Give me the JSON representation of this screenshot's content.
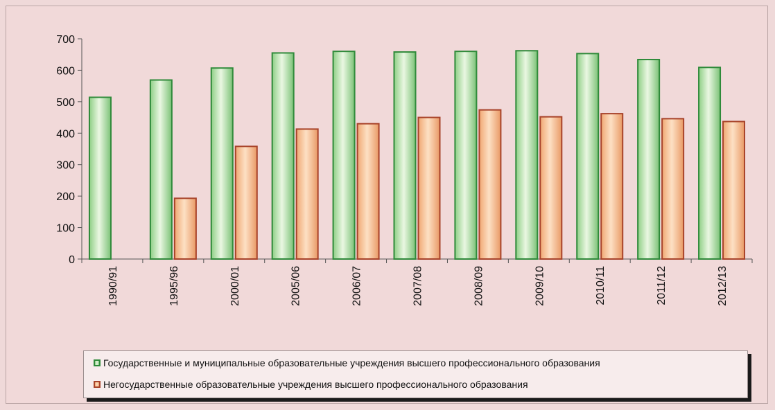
{
  "chart_data": {
    "type": "bar",
    "categories": [
      "1990/91",
      "1995/96",
      "2000/01",
      "2005/06",
      "2006/07",
      "2007/08",
      "2008/09",
      "2009/10",
      "2010/11",
      "2011/12",
      "2012/13"
    ],
    "series": [
      {
        "name": "Государственные и муниципальные образовательные учреждения высшего профессионального образования",
        "values": [
          514,
          569,
          607,
          655,
          660,
          658,
          660,
          662,
          653,
          634,
          609
        ],
        "fill": "#c8e6b7",
        "stroke": "#2f8a3a"
      },
      {
        "name": "Негосударственные образовательные учреждения высшего профессионального образования",
        "values": [
          null,
          193,
          358,
          413,
          430,
          450,
          474,
          452,
          462,
          446,
          437
        ],
        "fill": "#f5c49a",
        "stroke": "#a8432a"
      }
    ],
    "ylim": [
      0,
      700
    ],
    "yticks": [
      "0",
      "100",
      "200",
      "300",
      "400",
      "500",
      "600",
      "700"
    ],
    "grid": false,
    "legend_position": "bottom"
  }
}
